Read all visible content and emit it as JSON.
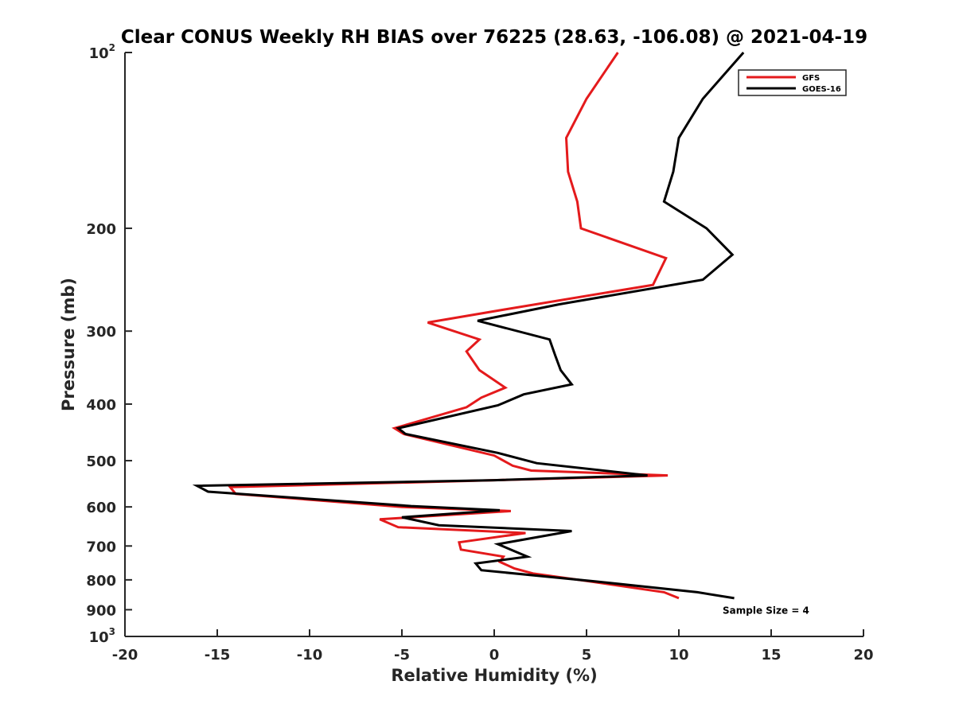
{
  "chart_data": {
    "type": "line",
    "title": "Clear CONUS Weekly RH BIAS over 76225 (28.63, -106.08) @ 2021-04-19",
    "xlabel": "Relative Humidity (%)",
    "ylabel": "Pressure (mb)",
    "xlim": [
      -20,
      20
    ],
    "ylim": [
      100,
      1000
    ],
    "y_scale": "log",
    "y_reversed": true,
    "grid": false,
    "legend_position": "top-right",
    "xticks": [
      -20,
      -15,
      -10,
      -5,
      0,
      5,
      10,
      15,
      20
    ],
    "xtick_labels": [
      "-20",
      "-15",
      "-10",
      "-5",
      "0",
      "5",
      "10",
      "15",
      "20"
    ],
    "yticks": [
      {
        "value": 100,
        "base": "10",
        "exp": "2"
      },
      {
        "value": 200,
        "base": "200",
        "exp": ""
      },
      {
        "value": 300,
        "base": "300",
        "exp": ""
      },
      {
        "value": 400,
        "base": "400",
        "exp": ""
      },
      {
        "value": 500,
        "base": "500",
        "exp": ""
      },
      {
        "value": 600,
        "base": "600",
        "exp": ""
      },
      {
        "value": 700,
        "base": "700",
        "exp": ""
      },
      {
        "value": 800,
        "base": "800",
        "exp": ""
      },
      {
        "value": 900,
        "base": "900",
        "exp": ""
      },
      {
        "value": 1000,
        "base": "10",
        "exp": "3"
      }
    ],
    "series": [
      {
        "name": "GFS",
        "color": "#e41a1c",
        "points": [
          {
            "x": 6.7,
            "y": 100
          },
          {
            "x": 5.0,
            "y": 120
          },
          {
            "x": 3.9,
            "y": 140
          },
          {
            "x": 4.0,
            "y": 160
          },
          {
            "x": 4.5,
            "y": 180
          },
          {
            "x": 4.7,
            "y": 200
          },
          {
            "x": 9.3,
            "y": 225
          },
          {
            "x": 8.6,
            "y": 250
          },
          {
            "x": 0.7,
            "y": 275
          },
          {
            "x": -3.6,
            "y": 290
          },
          {
            "x": -0.8,
            "y": 310
          },
          {
            "x": -1.5,
            "y": 325
          },
          {
            "x": -0.8,
            "y": 350
          },
          {
            "x": 0.6,
            "y": 375
          },
          {
            "x": -0.7,
            "y": 390
          },
          {
            "x": -1.5,
            "y": 405
          },
          {
            "x": -5.4,
            "y": 440
          },
          {
            "x": -4.9,
            "y": 450
          },
          {
            "x": 0.0,
            "y": 490
          },
          {
            "x": 1.0,
            "y": 510
          },
          {
            "x": 2.0,
            "y": 520
          },
          {
            "x": 9.4,
            "y": 530
          },
          {
            "x": 0.0,
            "y": 540
          },
          {
            "x": -14.3,
            "y": 555
          },
          {
            "x": -14.0,
            "y": 570
          },
          {
            "x": -5.0,
            "y": 600
          },
          {
            "x": 0.9,
            "y": 610
          },
          {
            "x": -6.2,
            "y": 630
          },
          {
            "x": -5.2,
            "y": 650
          },
          {
            "x": 1.7,
            "y": 665
          },
          {
            "x": -1.9,
            "y": 690
          },
          {
            "x": -1.8,
            "y": 710
          },
          {
            "x": 0.5,
            "y": 730
          },
          {
            "x": 0.3,
            "y": 745
          },
          {
            "x": 1.1,
            "y": 765
          },
          {
            "x": 2.1,
            "y": 780
          },
          {
            "x": 5.2,
            "y": 805
          },
          {
            "x": 9.2,
            "y": 840
          },
          {
            "x": 10.0,
            "y": 860
          }
        ]
      },
      {
        "name": "GOES-16",
        "color": "#000000",
        "points": [
          {
            "x": 13.5,
            "y": 100
          },
          {
            "x": 11.3,
            "y": 120
          },
          {
            "x": 10.0,
            "y": 140
          },
          {
            "x": 9.7,
            "y": 160
          },
          {
            "x": 9.2,
            "y": 180
          },
          {
            "x": 11.5,
            "y": 200
          },
          {
            "x": 12.9,
            "y": 222
          },
          {
            "x": 11.3,
            "y": 245
          },
          {
            "x": 3.5,
            "y": 270
          },
          {
            "x": -0.9,
            "y": 288
          },
          {
            "x": 3.0,
            "y": 310
          },
          {
            "x": 3.3,
            "y": 330
          },
          {
            "x": 3.6,
            "y": 350
          },
          {
            "x": 4.2,
            "y": 370
          },
          {
            "x": 1.6,
            "y": 385
          },
          {
            "x": 0.2,
            "y": 402
          },
          {
            "x": -5.2,
            "y": 440
          },
          {
            "x": -4.8,
            "y": 450
          },
          {
            "x": 0.2,
            "y": 485
          },
          {
            "x": 2.3,
            "y": 505
          },
          {
            "x": 8.3,
            "y": 530
          },
          {
            "x": 0.0,
            "y": 540
          },
          {
            "x": -16.1,
            "y": 552
          },
          {
            "x": -15.5,
            "y": 565
          },
          {
            "x": -4.5,
            "y": 598
          },
          {
            "x": 0.3,
            "y": 608
          },
          {
            "x": -5.0,
            "y": 625
          },
          {
            "x": -3.0,
            "y": 645
          },
          {
            "x": 4.2,
            "y": 660
          },
          {
            "x": 0.2,
            "y": 695
          },
          {
            "x": 1.8,
            "y": 730
          },
          {
            "x": -1.0,
            "y": 750
          },
          {
            "x": -0.7,
            "y": 770
          },
          {
            "x": 5.5,
            "y": 805
          },
          {
            "x": 11.0,
            "y": 840
          },
          {
            "x": 13.0,
            "y": 860
          }
        ]
      }
    ],
    "annotations": [
      {
        "text": "Sample Size = 4",
        "x": 12.5,
        "y": 900
      }
    ]
  }
}
